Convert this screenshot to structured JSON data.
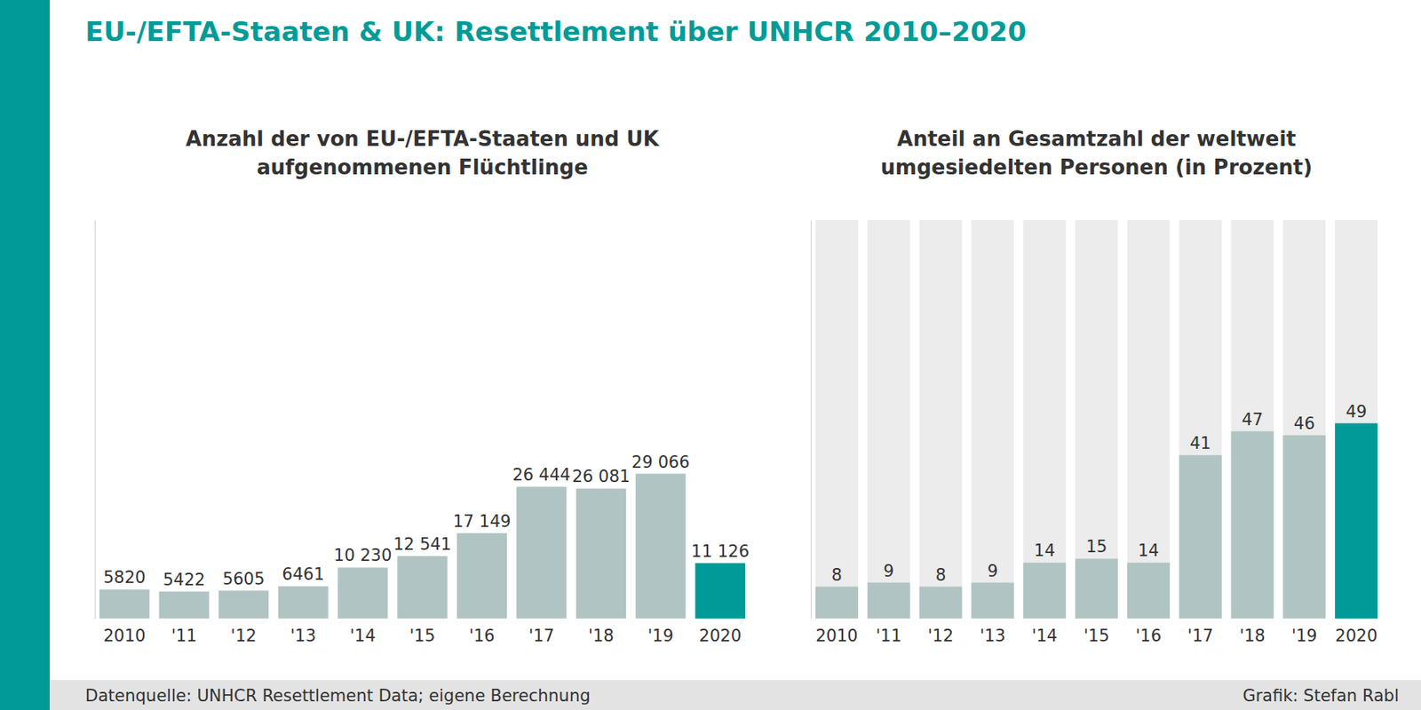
{
  "title": "EU-/EFTA-Staaten & UK: Resettlement über UNHCR 2010–2020",
  "source": "Datenquelle: UNHCR Resettlement Data; eigene Berechnung",
  "credit": "Grafik: Stefan Rabl",
  "chart_data": [
    {
      "type": "bar",
      "title": "Anzahl der von EU-/EFTA-Staaten und UK\naufgenommenen Flüchtlinge",
      "categories": [
        "2010",
        "'11",
        "'12",
        "'13",
        "'14",
        "'15",
        "'16",
        "'17",
        "'18",
        "'19",
        "2020"
      ],
      "values": [
        5820,
        5422,
        5605,
        6461,
        10230,
        12541,
        17149,
        26444,
        26081,
        29066,
        11126
      ],
      "value_labels": [
        "5820",
        "5422",
        "5605",
        "6461",
        "10 230",
        "12 541",
        "17 149",
        "26 444",
        "26 081",
        "29 066",
        "11 126"
      ],
      "colors": [
        "#b0c4c3",
        "#b0c4c3",
        "#b0c4c3",
        "#b0c4c3",
        "#b0c4c3",
        "#b0c4c3",
        "#b0c4c3",
        "#b0c4c3",
        "#b0c4c3",
        "#b0c4c3",
        "#009b98"
      ],
      "ylim": [
        0,
        80000
      ],
      "grid": false,
      "data_labels": true,
      "tick_labels": "x"
    },
    {
      "type": "bar",
      "title": "Anteil an Gesamtzahl der weltweit\numgesiedelten Personen (in Prozent)",
      "categories": [
        "2010",
        "'11",
        "'12",
        "'13",
        "'14",
        "'15",
        "'16",
        "'17",
        "'18",
        "'19",
        "2020"
      ],
      "values": [
        8,
        9,
        8,
        9,
        14,
        15,
        14,
        41,
        47,
        46,
        49
      ],
      "colors": [
        "#b0c4c3",
        "#b0c4c3",
        "#b0c4c3",
        "#b0c4c3",
        "#b0c4c3",
        "#b0c4c3",
        "#b0c4c3",
        "#b0c4c3",
        "#b0c4c3",
        "#b0c4c3",
        "#009b98"
      ],
      "ylim": [
        0,
        100
      ],
      "grid": false,
      "data_labels": true,
      "tick_labels": "x"
    }
  ]
}
